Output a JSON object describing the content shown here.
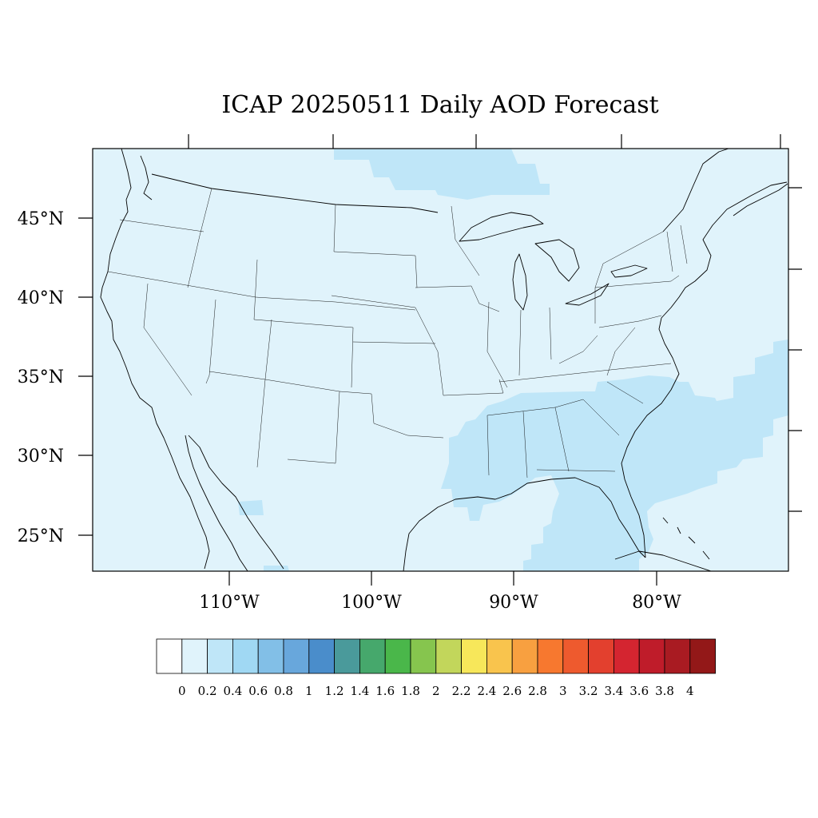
{
  "title": "ICAP 20250511 Daily AOD Forecast",
  "lat_labels": [
    "45°N",
    "40°N",
    "35°N",
    "30°N",
    "25°N"
  ],
  "lon_labels": [
    "110°W",
    "100°W",
    "90°W",
    "80°W"
  ],
  "colorbar": {
    "labels": [
      "0",
      "0.2",
      "0.4",
      "0.6",
      "0.8",
      "1",
      "1.2",
      "1.4",
      "1.6",
      "1.8",
      "2",
      "2.2",
      "2.4",
      "2.6",
      "2.8",
      "3",
      "3.2",
      "3.4",
      "3.6",
      "3.8",
      "4"
    ],
    "colors": [
      "#ffffff",
      "#e0f3fb",
      "#bfe6f8",
      "#a0d8f3",
      "#82bfe7",
      "#68a7dc",
      "#4a8dcb",
      "#4a9a9b",
      "#46a86c",
      "#4ab74a",
      "#86c54e",
      "#c2d65b",
      "#f7e75a",
      "#f9c44d",
      "#f8a040",
      "#f7782f",
      "#ee5a2e",
      "#e3402e",
      "#d42530",
      "#bf1c2a",
      "#a91b22",
      "#931818"
    ]
  },
  "map": {
    "extent": {
      "lon_min": -119.7,
      "lon_max": -70.6,
      "lat_min": 22.7,
      "lat_max": 49.3
    },
    "background_color": "#e0f3fb",
    "elevated_aod_color": "#bfe6f8",
    "elevated_regions": [
      "Lower Mississippi Valley and Gulf Coast",
      "Southeastern US and western Atlantic",
      "Gulf of Mexico",
      "Southern Ontario / Lake Superior",
      "Bahamas",
      "Northern Mexico (small patch)"
    ]
  }
}
